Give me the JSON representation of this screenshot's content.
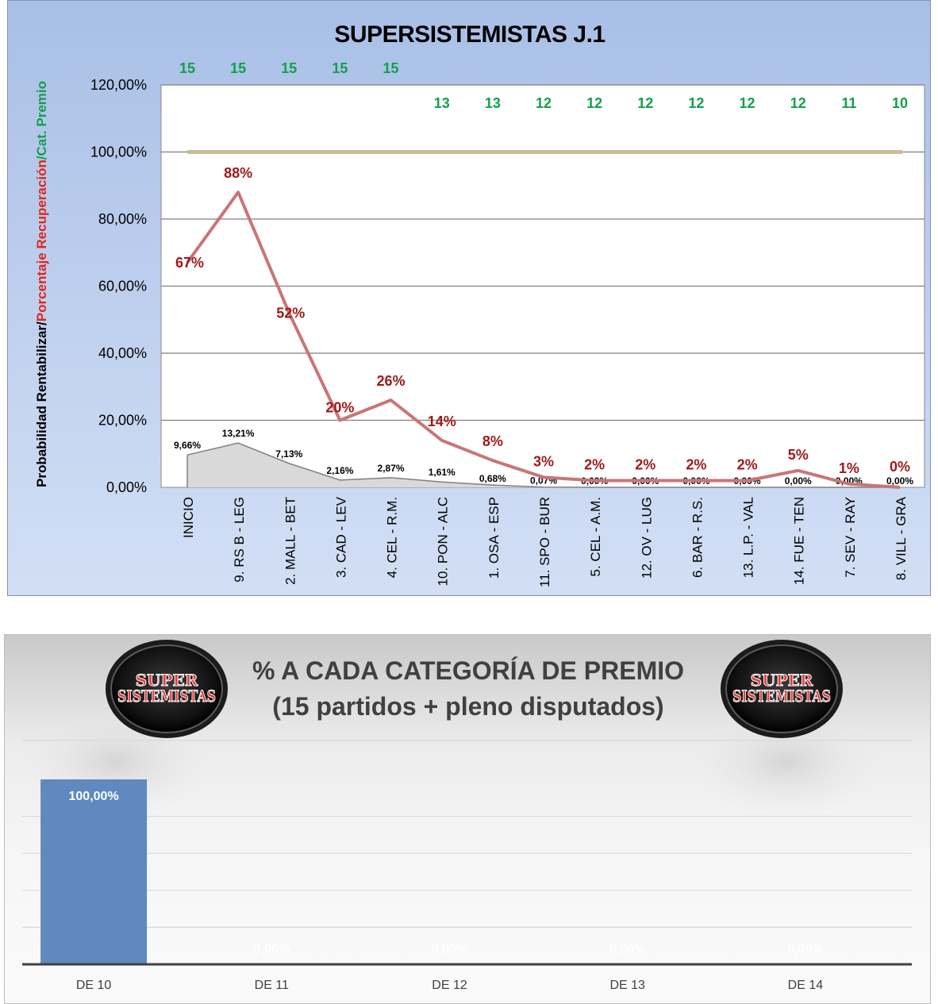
{
  "chart_data": [
    {
      "type": "line",
      "title": "SUPERSISTEMISTAS J.1",
      "ylabel_parts": [
        "Probabilidad Rentabilizar/",
        "Porcentaje Recuperación",
        "/Cat. Premio"
      ],
      "ylabel_colors": [
        "#000000",
        "#e2261b",
        "#12a04a"
      ],
      "ylim": [
        0,
        120
      ],
      "yticks": [
        "0,00%",
        "20,00%",
        "40,00%",
        "60,00%",
        "80,00%",
        "100,00%",
        "120,00%"
      ],
      "categories": [
        "INICIO",
        "9. RS B - LEG",
        "2. MALL - BET",
        "3. CAD - LEV",
        "4. CEL - R.M.",
        "10. PON - ALC",
        "1. OSA - ESP",
        "11. SPO - BUR",
        "5. CEL - A.M.",
        "12. OV - LUG",
        "6. BAR - R.S.",
        "13. L.P. - VAL",
        "14. FUE - TEN",
        "7. SEV - RAY",
        "8. VILL - GRA"
      ],
      "series": [
        {
          "values": [
            67,
            88,
            52,
            20,
            26,
            14,
            8,
            3,
            2,
            2,
            2,
            2,
            5,
            1,
            0
          ],
          "labels": [
            "67%",
            "88%",
            "52%",
            "20%",
            "26%",
            "14%",
            "8%",
            "3%",
            "2%",
            "2%",
            "2%",
            "2%",
            "5%",
            "1%",
            "0%"
          ],
          "color": "#c97578",
          "label_color": "#a01919"
        },
        {
          "values": [
            9.66,
            13.21,
            7.13,
            2.16,
            2.87,
            1.61,
            0.68,
            0.07,
            0,
            0,
            0,
            0,
            0,
            0,
            0
          ],
          "labels": [
            "9,66%",
            "13,21%",
            "7,13%",
            "2,16%",
            "2,87%",
            "1,61%",
            "0,68%",
            "0,07%",
            "0,00%",
            "0,00%",
            "0,00%",
            "0,00%",
            "0,00%",
            "0,00%",
            "0,00%"
          ],
          "color": "#808080",
          "fill": "#d9d9d9"
        }
      ],
      "categoria_premio": [
        "15",
        "15",
        "15",
        "15",
        "15",
        "13",
        "13",
        "12",
        "12",
        "12",
        "12",
        "12",
        "12",
        "11",
        "10"
      ],
      "categoria_color": "#12a04a",
      "reference_line_value": 100,
      "reference_line_color": "#c9bd96"
    },
    {
      "type": "bar",
      "title_lines": [
        "% A CADA CATEGORÍA DE PREMIO",
        "(15 partidos + pleno disputados)"
      ],
      "categories": [
        "DE 10",
        "DE 11",
        "DE 12",
        "DE 13",
        "DE 14"
      ],
      "values": [
        100,
        0,
        0,
        0,
        0
      ],
      "labels": [
        "100,00%",
        "0,00%",
        "0,00%",
        "0,00%",
        "0,00%"
      ],
      "ylim": [
        0,
        100
      ],
      "bar_color": "#5f89bf",
      "logo_line1": "SUPER",
      "logo_line2": "SISTEMISTAS"
    }
  ]
}
